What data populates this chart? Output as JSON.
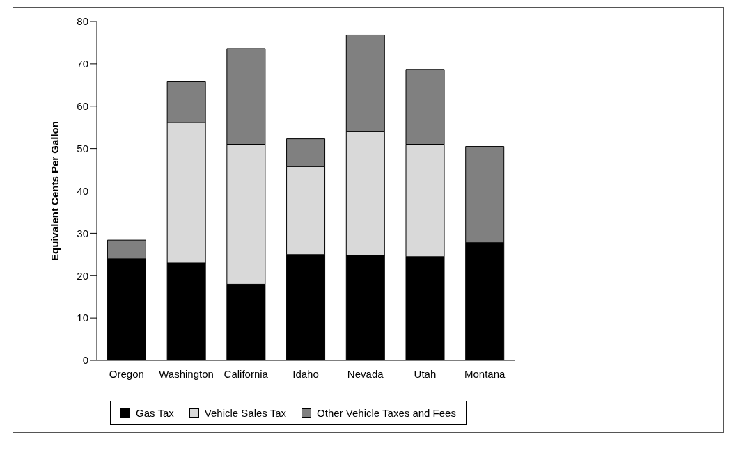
{
  "chart_data": {
    "type": "bar",
    "stacked": true,
    "ylabel": "Equivalent Cents Per Gallon",
    "categories": [
      "Oregon",
      "Washington",
      "California",
      "Idaho",
      "Nevada",
      "Utah",
      "Montana"
    ],
    "series": [
      {
        "name": "Gas Tax",
        "color": "#000000",
        "values": [
          24,
          23,
          18,
          25,
          24.8,
          24.5,
          27.8
        ]
      },
      {
        "name": "Vehicle Sales Tax",
        "color": "#d9d9d9",
        "values": [
          0,
          33.2,
          33,
          20.8,
          29.2,
          26.5,
          0
        ]
      },
      {
        "name": "Other Vehicle Taxes and Fees",
        "color": "#808080",
        "values": [
          4.4,
          9.6,
          22.6,
          6.5,
          22.8,
          17.7,
          22.7
        ]
      }
    ],
    "ylim": [
      0,
      80
    ],
    "yticks": [
      0,
      10,
      20,
      30,
      40,
      50,
      60,
      70,
      80
    ],
    "grid": false,
    "legend": "bottom"
  }
}
